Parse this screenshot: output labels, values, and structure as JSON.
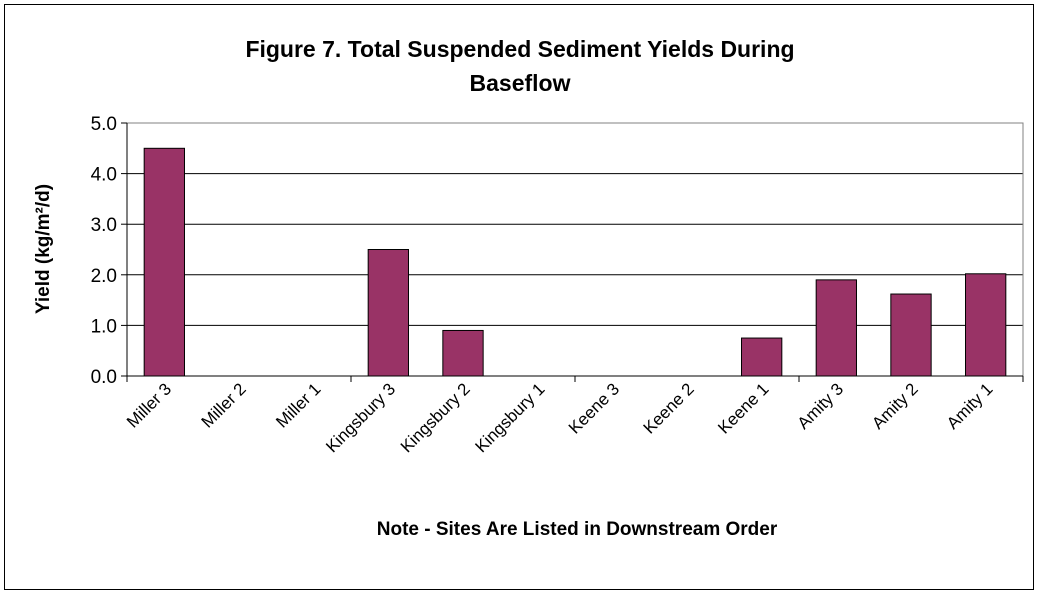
{
  "chart_data": {
    "type": "bar",
    "title_line1": "Figure 7. Total Suspended Sediment Yields During",
    "title_line2": "Baseflow",
    "xlabel": "Note - Sites Are Listed in Downstream Order",
    "ylabel": "Yield (kg/m²/d)",
    "categories": [
      "Miller 3",
      "Miller 2",
      "Miller 1",
      "Kingsbury 3",
      "Kingsbury 2",
      "Kingsbury 1",
      "Keene 3",
      "Keene 2",
      "Keene 1",
      "Amity 3",
      "Amity 2",
      "Amity 1"
    ],
    "values": [
      4.5,
      0,
      0,
      2.5,
      0.9,
      0,
      0,
      0,
      0.75,
      1.9,
      1.62,
      2.02
    ],
    "ylim": [
      0,
      5
    ],
    "yticks": [
      "0.0",
      "1.0",
      "2.0",
      "3.0",
      "4.0",
      "5.0"
    ],
    "grid": true,
    "bar_color": "#993366",
    "legend": "none"
  }
}
